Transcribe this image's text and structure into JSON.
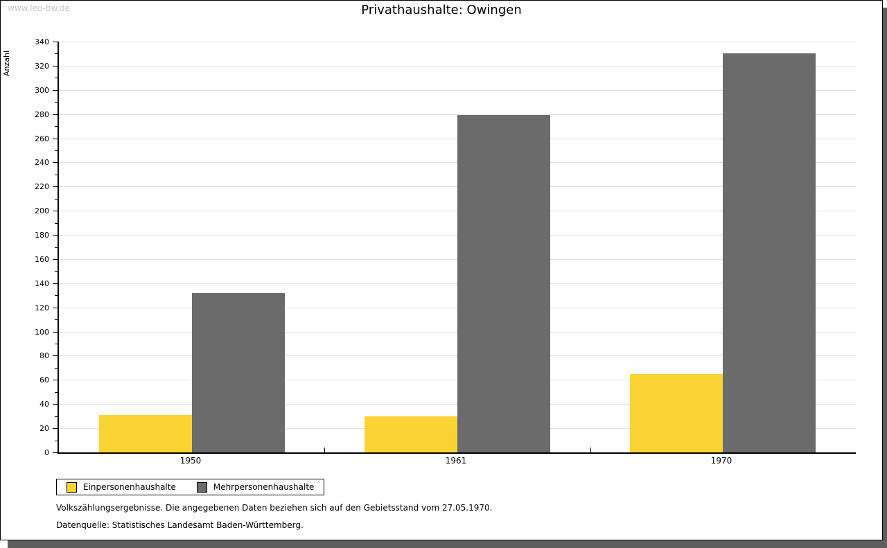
{
  "watermark": "www.leo-bw.de",
  "title": "Privathaushalte: Owingen",
  "y_axis_title": "Anzahl",
  "legend": {
    "items": [
      {
        "label": "Einpersonenhaushalte",
        "color": "#fcd335"
      },
      {
        "label": "Mehrpersonenhaushalte",
        "color": "#6b6b6b"
      }
    ]
  },
  "footnotes": [
    "Volkszählungsergebnisse. Die angegebenen Daten beziehen sich auf den Gebietsstand vom 27.05.1970.",
    "Datenquelle: Statistisches Landesamt Baden-Württemberg."
  ],
  "colors": {
    "series_1": "#fcd335",
    "series_2": "#6b6b6b",
    "gridline": "#e3e3e3",
    "axis": "#000000",
    "watermark_text": "#c6c6c6",
    "card_shadow": "#5e5e5e"
  },
  "chart_data": {
    "type": "bar",
    "title": "Privathaushalte: Owingen",
    "categories": [
      "1950",
      "1961",
      "1970"
    ],
    "series": [
      {
        "name": "Einpersonenhaushalte",
        "color": "#fcd335",
        "values": [
          31,
          30,
          65
        ]
      },
      {
        "name": "Mehrpersonenhaushalte",
        "color": "#6b6b6b",
        "values": [
          132,
          279,
          330
        ]
      }
    ],
    "xlabel": "",
    "ylabel": "Anzahl",
    "ylim": [
      0,
      340
    ],
    "y_major_step": 20,
    "y_minor_step": 10,
    "grid": true,
    "legend_position": "bottom-left"
  }
}
